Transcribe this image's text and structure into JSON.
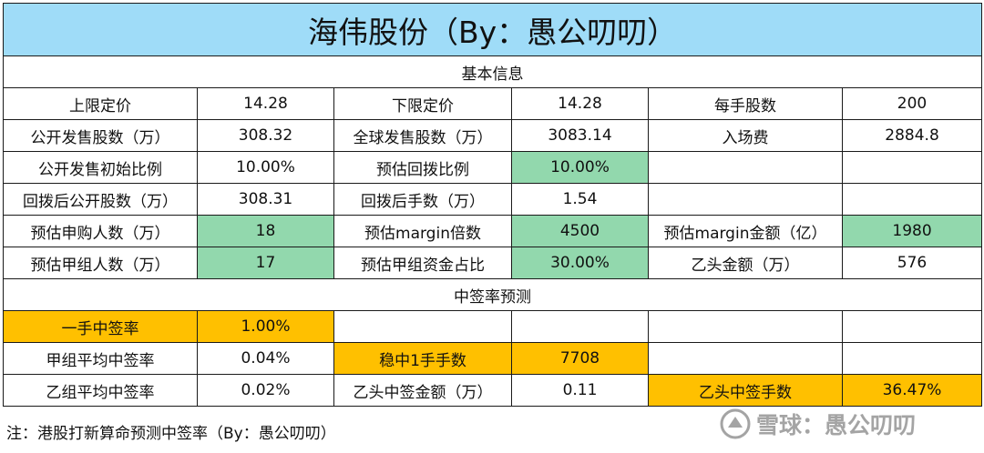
{
  "title": "海伟股份（By：愚公叨叨）",
  "section_basic": "基本信息",
  "section_predict": "中签率预测",
  "basic_rows": [
    [
      "上限定价",
      "14.28",
      "下限定价",
      "14.28",
      "每手股数",
      "200"
    ],
    [
      "公开发售股数（万）",
      "308.32",
      "全球发售股数（万）",
      "3083.14",
      "入场费",
      "2884.8"
    ],
    [
      "公开发售初始比例",
      "10.00%",
      "预估回拨比例",
      "10.00%",
      "",
      ""
    ],
    [
      "回拨后公开股数（万）",
      "308.31",
      "回拨后手数（万）",
      "1.54",
      "",
      ""
    ],
    [
      "预估申购人数（万）",
      "18",
      "预估margin倍数",
      "4500",
      "预估margin金额（亿）",
      "1980"
    ],
    [
      "预估甲组人数（万）",
      "17",
      "预估甲组资金占比",
      "30.00%",
      "乙头金额（万）",
      "576"
    ]
  ],
  "predict_rows": [
    [
      "一手中签率",
      "1.00%",
      "",
      "",
      "",
      ""
    ],
    [
      "甲组平均中签率",
      "0.04%",
      "稳中1手手数",
      "7708",
      "",
      ""
    ],
    [
      "乙组平均中签率",
      "0.02%",
      "乙头中签金额（万）",
      "0.11",
      "乙头中签手数",
      "36.47%"
    ]
  ],
  "note": "注：港股打新算命预测中签率（By：愚公叨叨）",
  "watermark": "雪球：愚公叨叨",
  "colors": {
    "title_bg": "#9fdcf8",
    "highlight_green": "#92d8ad",
    "highlight_orange": "#ffc000"
  }
}
